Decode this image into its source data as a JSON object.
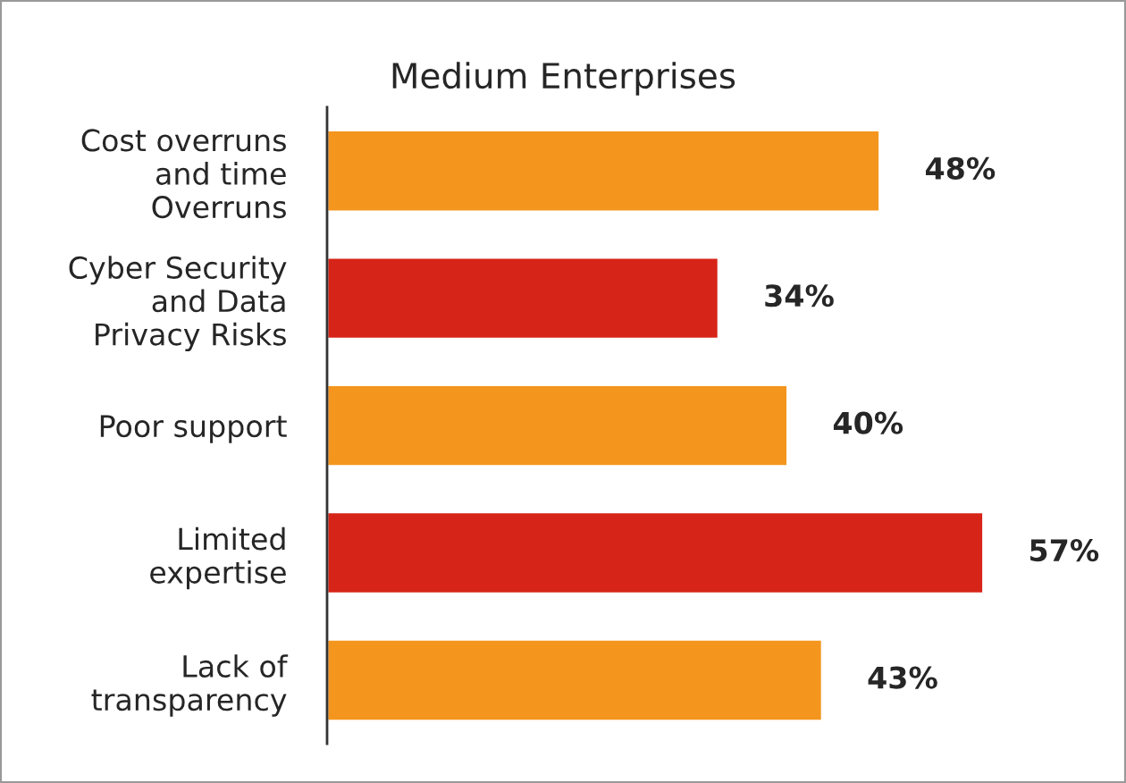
{
  "chart_data": {
    "type": "bar",
    "orientation": "horizontal",
    "title": "Medium Enterprises",
    "categories": [
      "Cost overruns\nand time\nOverruns",
      "Cyber Security\nand Data\nPrivacy Risks",
      "Poor support",
      "Limited\nexpertise",
      "Lack of\ntransparency"
    ],
    "values": [
      48,
      34,
      40,
      57,
      43
    ],
    "colors": [
      "#f4961e",
      "#d62518",
      "#f4961e",
      "#d62518",
      "#f4961e"
    ],
    "value_labels": [
      "48%",
      "34%",
      "40%",
      "57%",
      "43%"
    ],
    "grid": false,
    "legend": false
  }
}
